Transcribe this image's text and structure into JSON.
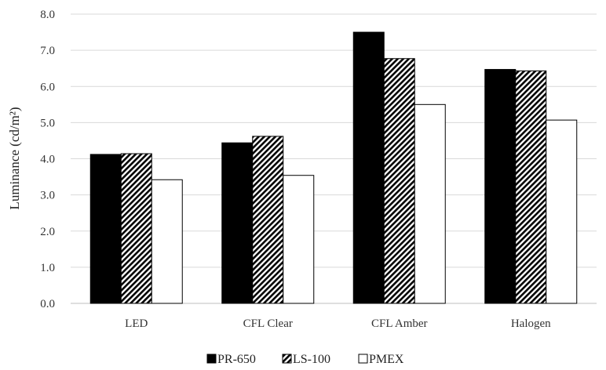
{
  "chart_data": {
    "type": "bar",
    "categories": [
      "LED",
      "CFL Clear",
      "CFL Amber",
      "Halogen"
    ],
    "series": [
      {
        "name": "PR-650",
        "values": [
          4.12,
          4.44,
          7.5,
          6.47
        ],
        "fill": "#000000"
      },
      {
        "name": "LS-100",
        "values": [
          4.14,
          4.62,
          6.77,
          6.43
        ],
        "fill": "hatch"
      },
      {
        "name": "PMEX",
        "values": [
          3.42,
          3.54,
          5.5,
          5.07
        ],
        "fill": "#ffffff"
      }
    ],
    "ylabel": "Luminance (cd/m²)",
    "xlabel": "",
    "ylim": [
      0,
      8
    ],
    "yticks": [
      "0.0",
      "1.0",
      "2.0",
      "3.0",
      "4.0",
      "5.0",
      "6.0",
      "7.0",
      "8.0"
    ],
    "grid": true,
    "legend_position": "bottom"
  }
}
